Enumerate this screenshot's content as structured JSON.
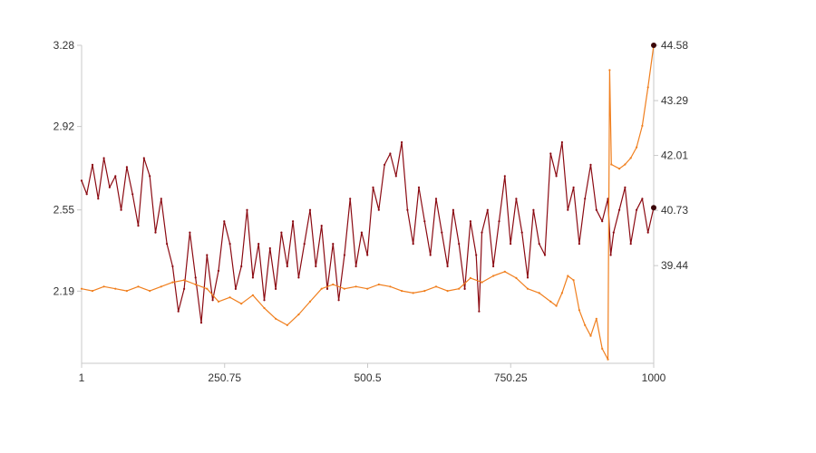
{
  "chart_data": {
    "type": "line",
    "title": "",
    "xlabel": "",
    "ylabel": "",
    "grid": false,
    "legend": "none",
    "x_range": [
      1,
      1000
    ],
    "x_ticks": [
      1,
      250.75,
      500.5,
      750.25,
      1000
    ],
    "x_tick_labels": [
      "1",
      "250.75",
      "500.5",
      "750.25",
      "1000"
    ],
    "y_left": {
      "range": [
        1.87,
        3.28
      ],
      "ticks": [
        2.19,
        2.55,
        2.92,
        3.28
      ],
      "tick_labels": [
        "2.19",
        "2.55",
        "2.92",
        "3.28"
      ]
    },
    "y_right": {
      "range": [
        37.16,
        44.58
      ],
      "ticks": [
        39.44,
        40.73,
        42.01,
        43.29,
        44.58
      ],
      "tick_labels": [
        "39.44",
        "40.73",
        "42.01",
        "43.29",
        "44.58"
      ]
    },
    "series": [
      {
        "axis": "left",
        "color": "#8b0a12",
        "x": [
          1,
          10,
          20,
          30,
          40,
          50,
          60,
          70,
          80,
          90,
          100,
          110,
          120,
          130,
          140,
          150,
          160,
          170,
          180,
          190,
          200,
          210,
          220,
          230,
          240,
          250,
          260,
          270,
          280,
          290,
          300,
          310,
          320,
          330,
          340,
          350,
          360,
          370,
          380,
          390,
          400,
          410,
          420,
          430,
          440,
          450,
          460,
          470,
          480,
          490,
          500,
          510,
          520,
          530,
          540,
          550,
          560,
          570,
          580,
          590,
          600,
          610,
          620,
          630,
          640,
          650,
          660,
          670,
          680,
          690,
          695,
          700,
          710,
          720,
          730,
          740,
          750,
          760,
          770,
          780,
          790,
          800,
          810,
          820,
          830,
          840,
          850,
          860,
          870,
          880,
          890,
          900,
          910,
          920,
          925,
          930,
          940,
          950,
          960,
          970,
          980,
          990,
          1000
        ],
        "values": [
          2.68,
          2.62,
          2.75,
          2.6,
          2.78,
          2.65,
          2.7,
          2.55,
          2.74,
          2.62,
          2.48,
          2.78,
          2.7,
          2.45,
          2.6,
          2.4,
          2.3,
          2.1,
          2.2,
          2.45,
          2.25,
          2.05,
          2.35,
          2.15,
          2.28,
          2.5,
          2.4,
          2.2,
          2.3,
          2.55,
          2.25,
          2.4,
          2.15,
          2.38,
          2.2,
          2.45,
          2.3,
          2.5,
          2.25,
          2.4,
          2.55,
          2.3,
          2.48,
          2.2,
          2.4,
          2.15,
          2.35,
          2.6,
          2.3,
          2.45,
          2.35,
          2.65,
          2.55,
          2.75,
          2.8,
          2.7,
          2.85,
          2.55,
          2.4,
          2.65,
          2.5,
          2.35,
          2.6,
          2.45,
          2.3,
          2.55,
          2.4,
          2.2,
          2.5,
          2.35,
          2.1,
          2.45,
          2.55,
          2.3,
          2.5,
          2.7,
          2.4,
          2.6,
          2.45,
          2.25,
          2.55,
          2.4,
          2.35,
          2.8,
          2.7,
          2.85,
          2.55,
          2.65,
          2.4,
          2.6,
          2.75,
          2.55,
          2.5,
          2.6,
          2.35,
          2.45,
          2.55,
          2.65,
          2.4,
          2.55,
          2.6,
          2.45,
          2.56
        ]
      },
      {
        "axis": "right",
        "color": "#f07f1e",
        "x": [
          1,
          20,
          40,
          60,
          80,
          100,
          120,
          140,
          160,
          180,
          200,
          220,
          240,
          260,
          280,
          300,
          320,
          340,
          360,
          380,
          400,
          420,
          440,
          460,
          480,
          500,
          520,
          540,
          560,
          580,
          600,
          620,
          640,
          660,
          680,
          700,
          720,
          740,
          760,
          780,
          800,
          820,
          830,
          840,
          850,
          860,
          870,
          880,
          890,
          900,
          910,
          920,
          923,
          926,
          940,
          950,
          960,
          970,
          980,
          990,
          1000
        ],
        "values": [
          38.9,
          38.85,
          38.95,
          38.9,
          38.85,
          38.95,
          38.85,
          38.95,
          39.05,
          39.1,
          39.0,
          38.9,
          38.6,
          38.7,
          38.55,
          38.75,
          38.45,
          38.2,
          38.05,
          38.3,
          38.6,
          38.9,
          39.0,
          38.9,
          38.95,
          38.9,
          39.0,
          38.95,
          38.85,
          38.8,
          38.85,
          38.95,
          38.85,
          38.9,
          39.15,
          39.05,
          39.2,
          39.3,
          39.15,
          38.9,
          38.8,
          38.6,
          38.5,
          38.8,
          39.2,
          39.1,
          38.4,
          38.05,
          37.8,
          38.2,
          37.5,
          37.25,
          44.0,
          41.8,
          41.7,
          41.8,
          41.95,
          42.2,
          42.7,
          43.6,
          44.58
        ]
      }
    ]
  }
}
